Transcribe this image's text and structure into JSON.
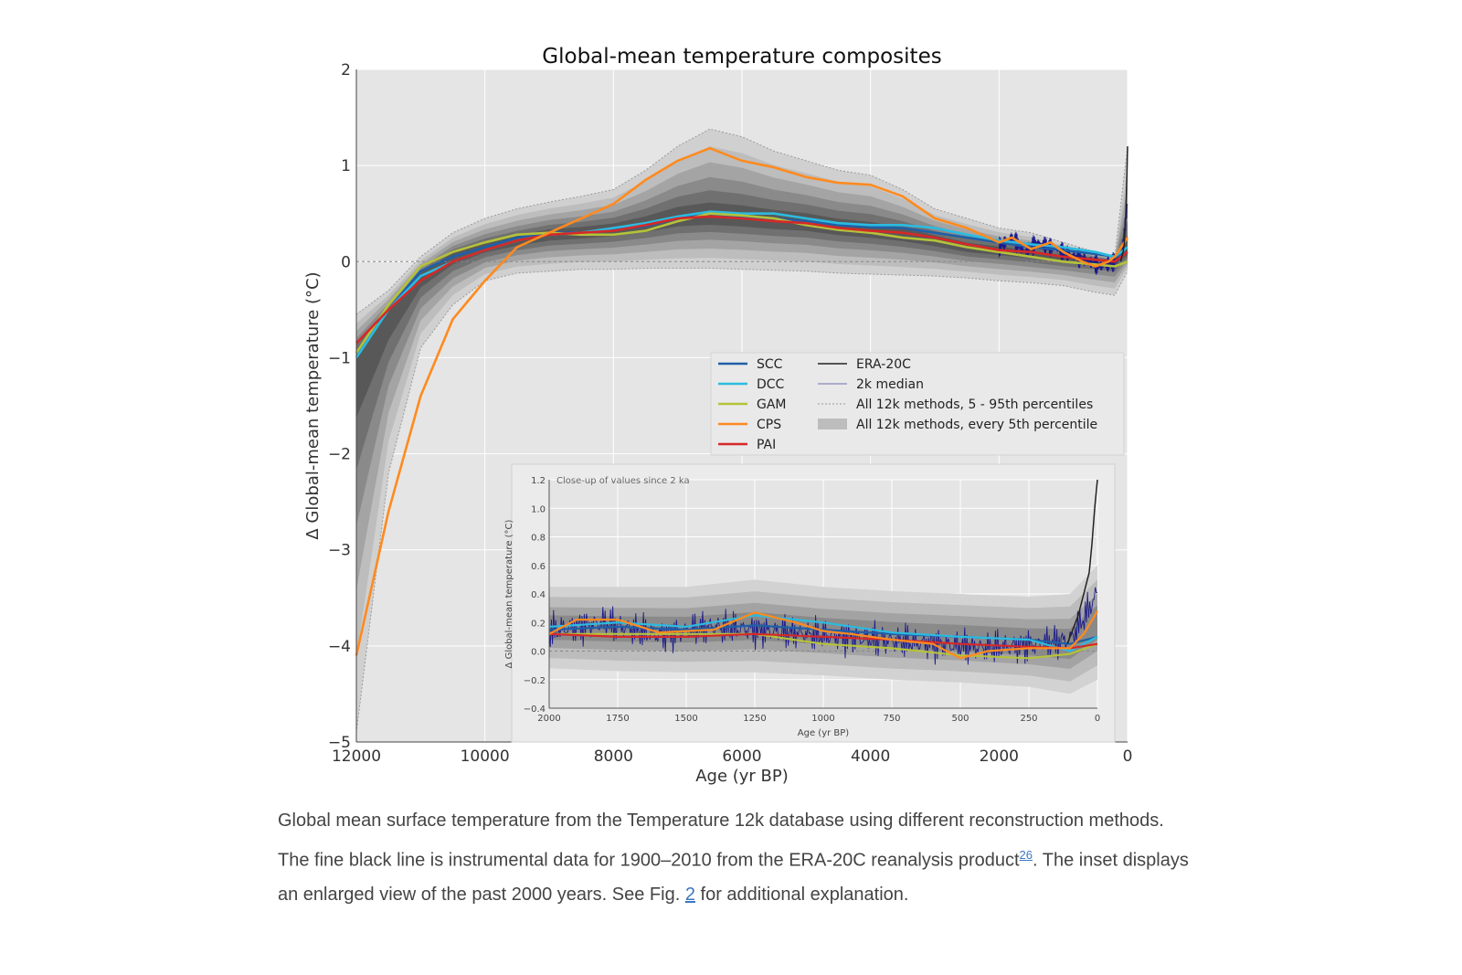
{
  "chart_data": {
    "type": "line",
    "title": "Global-mean temperature composites",
    "xlabel": "Age (yr BP)",
    "ylabel": "Δ Global-mean temperature (°C)",
    "xlim": [
      12000,
      0
    ],
    "ylim": [
      -5,
      2
    ],
    "x_ticks": [
      "12000",
      "10000",
      "8000",
      "6000",
      "4000",
      "2000",
      "0"
    ],
    "y_ticks": [
      "2",
      "1",
      "0",
      "−1",
      "−2",
      "−3",
      "−4",
      "−5"
    ],
    "grid": true,
    "legend_position": "center-right",
    "colors": {
      "SCC": "#1f5fa8",
      "DCC": "#2bbbe0",
      "GAM": "#b5c23a",
      "CPS": "#ff8a1e",
      "PAI": "#d62828",
      "ERA-20C": "#222222",
      "2k median": "#1b1b8a"
    },
    "band": {
      "name": "All 12k methods, every 5th percentile",
      "x": [
        12000,
        11500,
        11000,
        10500,
        10000,
        9500,
        9000,
        8500,
        8000,
        7500,
        7000,
        6500,
        6000,
        5500,
        5000,
        4500,
        4000,
        3500,
        3000,
        2500,
        2000,
        1500,
        1000,
        500,
        200,
        0
      ],
      "mid": [
        -1.0,
        -0.55,
        -0.15,
        0.05,
        0.15,
        0.22,
        0.28,
        0.3,
        0.33,
        0.38,
        0.45,
        0.47,
        0.45,
        0.42,
        0.4,
        0.35,
        0.32,
        0.28,
        0.22,
        0.15,
        0.12,
        0.08,
        0.04,
        0.02,
        0.0,
        0.1
      ],
      "upper": [
        -0.55,
        -0.3,
        0.05,
        0.3,
        0.45,
        0.55,
        0.62,
        0.68,
        0.75,
        0.95,
        1.2,
        1.38,
        1.3,
        1.15,
        1.05,
        0.95,
        0.9,
        0.75,
        0.55,
        0.45,
        0.35,
        0.3,
        0.2,
        0.1,
        0.05,
        1.2
      ],
      "lower": [
        -4.9,
        -2.2,
        -0.9,
        -0.45,
        -0.2,
        -0.12,
        -0.1,
        -0.08,
        -0.08,
        -0.07,
        -0.07,
        -0.07,
        -0.08,
        -0.09,
        -0.1,
        -0.12,
        -0.13,
        -0.14,
        -0.15,
        -0.17,
        -0.2,
        -0.22,
        -0.25,
        -0.32,
        -0.35,
        -0.1
      ]
    },
    "series": [
      {
        "name": "SCC",
        "x": [
          12000,
          11500,
          11000,
          10500,
          10000,
          9500,
          9000,
          8500,
          8000,
          7500,
          7000,
          6500,
          6000,
          5500,
          5000,
          4500,
          4000,
          3500,
          3000,
          2500,
          2000,
          1500,
          1000,
          500,
          200,
          0
        ],
        "values": [
          -0.95,
          -0.5,
          -0.1,
          0.05,
          0.15,
          0.25,
          0.3,
          0.3,
          0.33,
          0.37,
          0.45,
          0.5,
          0.47,
          0.45,
          0.42,
          0.38,
          0.36,
          0.35,
          0.3,
          0.25,
          0.2,
          0.15,
          0.12,
          0.08,
          0.05,
          0.1
        ]
      },
      {
        "name": "DCC",
        "x": [
          12000,
          11500,
          11000,
          10500,
          10000,
          9500,
          9000,
          8500,
          8000,
          7500,
          7000,
          6500,
          6000,
          5500,
          5000,
          4500,
          4000,
          3500,
          3000,
          2500,
          2000,
          1500,
          1000,
          500,
          200,
          0
        ],
        "values": [
          -1.0,
          -0.5,
          -0.15,
          0.0,
          0.12,
          0.22,
          0.28,
          0.3,
          0.35,
          0.4,
          0.47,
          0.52,
          0.5,
          0.5,
          0.45,
          0.4,
          0.38,
          0.38,
          0.35,
          0.28,
          0.22,
          0.18,
          0.15,
          0.1,
          0.05,
          0.15
        ]
      },
      {
        "name": "GAM",
        "x": [
          12000,
          11500,
          11000,
          10500,
          10000,
          9500,
          9000,
          8500,
          8000,
          7500,
          7000,
          6500,
          6000,
          5500,
          5000,
          4500,
          4000,
          3500,
          3000,
          2500,
          2000,
          1500,
          1000,
          500,
          200,
          0
        ],
        "values": [
          -0.95,
          -0.45,
          -0.05,
          0.1,
          0.2,
          0.28,
          0.3,
          0.28,
          0.28,
          0.32,
          0.42,
          0.5,
          0.48,
          0.45,
          0.38,
          0.33,
          0.3,
          0.25,
          0.22,
          0.15,
          0.1,
          0.05,
          0.0,
          -0.03,
          -0.05,
          0.0
        ]
      },
      {
        "name": "CPS",
        "x": [
          12000,
          11500,
          11000,
          10500,
          10000,
          9500,
          9000,
          8500,
          8000,
          7500,
          7000,
          6500,
          6000,
          5500,
          5000,
          4500,
          4000,
          3500,
          3000,
          2500,
          2000,
          1800,
          1500,
          1200,
          1000,
          700,
          500,
          300,
          200,
          0
        ],
        "values": [
          -4.1,
          -2.6,
          -1.4,
          -0.6,
          -0.2,
          0.15,
          0.3,
          0.45,
          0.6,
          0.85,
          1.05,
          1.18,
          1.05,
          0.98,
          0.88,
          0.82,
          0.8,
          0.68,
          0.45,
          0.35,
          0.2,
          0.25,
          0.13,
          0.2,
          0.1,
          0.0,
          -0.05,
          0.0,
          0.05,
          0.25
        ]
      },
      {
        "name": "PAI",
        "x": [
          12000,
          11500,
          11000,
          10500,
          10000,
          9500,
          9000,
          8500,
          8000,
          7500,
          7000,
          6500,
          6000,
          5500,
          5000,
          4500,
          4000,
          3500,
          3000,
          2500,
          2000,
          1500,
          1000,
          500,
          200,
          0
        ],
        "values": [
          -0.85,
          -0.5,
          -0.2,
          0.0,
          0.12,
          0.22,
          0.28,
          0.3,
          0.32,
          0.38,
          0.45,
          0.47,
          0.45,
          0.42,
          0.4,
          0.35,
          0.32,
          0.3,
          0.25,
          0.18,
          0.12,
          0.1,
          0.05,
          0.02,
          0.0,
          0.1
        ]
      },
      {
        "name": "ERA-20C",
        "x": [
          110,
          90,
          70,
          50,
          30,
          10,
          0
        ],
        "values": [
          0.0,
          0.05,
          0.1,
          0.2,
          0.45,
          0.9,
          1.2
        ]
      },
      {
        "name": "2k median",
        "x": [
          2000,
          1800,
          1600,
          1400,
          1200,
          1000,
          800,
          600,
          400,
          200,
          100,
          50,
          0
        ],
        "values": [
          0.15,
          0.25,
          0.1,
          0.2,
          0.15,
          0.1,
          0.05,
          0.0,
          -0.05,
          0.0,
          0.05,
          0.3,
          0.6
        ]
      }
    ],
    "legend": [
      {
        "name": "SCC",
        "style": "line"
      },
      {
        "name": "DCC",
        "style": "line"
      },
      {
        "name": "GAM",
        "style": "line"
      },
      {
        "name": "CPS",
        "style": "line"
      },
      {
        "name": "PAI",
        "style": "line"
      },
      {
        "name": "ERA-20C",
        "style": "line"
      },
      {
        "name": "2k median",
        "style": "line"
      },
      {
        "name": "All 12k methods, 5 - 95th percentiles",
        "style": "dotted"
      },
      {
        "name": "All 12k methods, every 5th percentile",
        "style": "patch"
      }
    ],
    "inset": {
      "annotation": "Close-up of values since 2 ka",
      "xlabel": "Age (yr BP)",
      "ylabel": "Δ Global-mean temperature (°C)",
      "xlim": [
        2000,
        0
      ],
      "ylim": [
        -0.4,
        1.2
      ],
      "x_ticks": [
        "2000",
        "1750",
        "1500",
        "1250",
        "1000",
        "750",
        "500",
        "250",
        "0"
      ],
      "y_ticks": [
        "1.2",
        "1.0",
        "0.8",
        "0.6",
        "0.4",
        "0.2",
        "0.0",
        "−0.2",
        "−0.4"
      ],
      "band": {
        "x": [
          2000,
          1750,
          1500,
          1250,
          1000,
          750,
          500,
          250,
          100,
          0
        ],
        "upper": [
          0.45,
          0.45,
          0.45,
          0.5,
          0.45,
          0.42,
          0.4,
          0.38,
          0.4,
          0.6
        ],
        "lower": [
          -0.12,
          -0.14,
          -0.15,
          -0.15,
          -0.17,
          -0.2,
          -0.22,
          -0.25,
          -0.3,
          -0.2
        ]
      },
      "series": [
        {
          "name": "SCC",
          "x": [
            2000,
            1750,
            1500,
            1250,
            1000,
            750,
            500,
            250,
            100,
            0
          ],
          "values": [
            0.15,
            0.17,
            0.15,
            0.18,
            0.15,
            0.12,
            0.1,
            0.08,
            0.05,
            0.1
          ]
        },
        {
          "name": "DCC",
          "x": [
            2000,
            1750,
            1500,
            1250,
            1000,
            750,
            500,
            250,
            100,
            0
          ],
          "values": [
            0.17,
            0.2,
            0.17,
            0.25,
            0.2,
            0.13,
            0.1,
            0.08,
            0.0,
            0.1
          ]
        },
        {
          "name": "GAM",
          "x": [
            2000,
            1750,
            1500,
            1250,
            1000,
            750,
            500,
            250,
            100,
            0
          ],
          "values": [
            0.12,
            0.12,
            0.12,
            0.12,
            0.05,
            0.02,
            -0.03,
            -0.05,
            -0.02,
            0.05
          ]
        },
        {
          "name": "CPS",
          "x": [
            2000,
            1900,
            1750,
            1600,
            1400,
            1250,
            1100,
            1000,
            900,
            750,
            600,
            500,
            400,
            250,
            100,
            50,
            0
          ],
          "values": [
            0.12,
            0.22,
            0.22,
            0.13,
            0.15,
            0.27,
            0.2,
            0.14,
            0.12,
            0.08,
            0.05,
            -0.05,
            0.0,
            0.02,
            0.02,
            0.12,
            0.28
          ]
        },
        {
          "name": "PAI",
          "x": [
            2000,
            1750,
            1500,
            1250,
            1000,
            750,
            500,
            250,
            100,
            0
          ],
          "values": [
            0.12,
            0.1,
            0.1,
            0.12,
            0.1,
            0.08,
            0.05,
            0.03,
            0.02,
            0.05
          ]
        },
        {
          "name": "ERA-20C",
          "x": [
            110,
            90,
            70,
            50,
            30,
            20,
            10,
            0
          ],
          "values": [
            0.05,
            0.15,
            0.25,
            0.4,
            0.55,
            0.75,
            1.0,
            1.2
          ]
        }
      ]
    }
  },
  "caption": {
    "text_1": "Global mean surface temperature from the Temperature 12k database using different reconstruction methods. The fine black line is instrumental data for 1900–2010 from the ERA-20C reanalysis product",
    "ref_link": "26",
    "text_2": ". The inset displays an enlarged view of the past 2000 years. See Fig. ",
    "fig_link": "2",
    "text_3": " for additional explanation."
  }
}
